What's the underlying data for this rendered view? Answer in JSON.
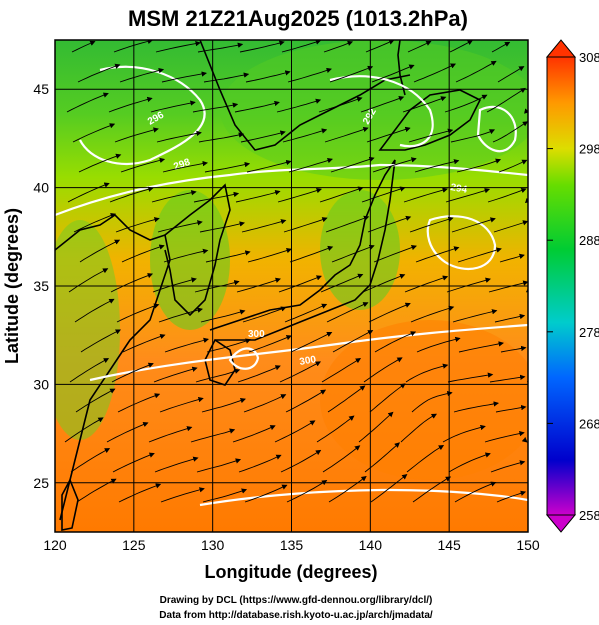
{
  "title": "MSM 21Z21Aug2025 (1013.2hPa)",
  "xlabel": "Longitude (degrees)",
  "ylabel": "Latitude  (degrees)",
  "x_ticks": [
    "120",
    "125",
    "130",
    "135",
    "140",
    "145",
    "150"
  ],
  "y_ticks": [
    "25",
    "30",
    "35",
    "40",
    "45"
  ],
  "colorbar": {
    "ticks": [
      "308",
      "298",
      "288",
      "278",
      "268",
      "258"
    ],
    "colors": [
      "#cc00cc",
      "#0000cc",
      "#0066ff",
      "#00cccc",
      "#00cc33",
      "#66dd00",
      "#dddd00",
      "#ff9900",
      "#ff3300"
    ]
  },
  "credits": {
    "line1": "Drawing by DCL (https://www.gfd-dennou.org/library/dcl/)",
    "line2": "Data from http://database.rish.kyoto-u.ac.jp/arch/jmadata/"
  },
  "contour_labels": [
    "296",
    "298",
    "292",
    "294",
    "300",
    "300"
  ],
  "chart_data": {
    "type": "map",
    "xlim": [
      120,
      150
    ],
    "ylim": [
      22.5,
      47.5
    ],
    "colorbar_range": [
      258,
      308
    ],
    "grid": true
  }
}
